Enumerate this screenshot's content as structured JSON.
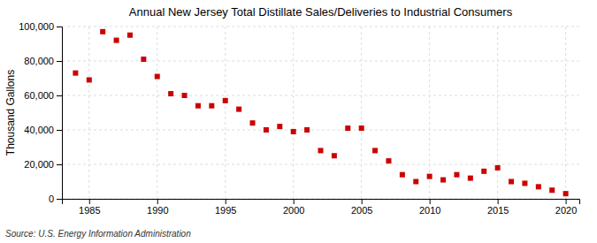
{
  "chart_data": {
    "type": "scatter",
    "title": "Annual New Jersey Total Distillate Sales/Deliveries to Industrial Consumers",
    "ylabel": "Thousand Gallons",
    "source": "Source: U.S. Energy Information Administration",
    "x": [
      1984,
      1985,
      1986,
      1987,
      1988,
      1989,
      1990,
      1991,
      1992,
      1993,
      1994,
      1995,
      1996,
      1997,
      1998,
      1999,
      2000,
      2001,
      2002,
      2003,
      2004,
      2005,
      2006,
      2007,
      2008,
      2009,
      2010,
      2011,
      2012,
      2013,
      2014,
      2015,
      2016,
      2017,
      2018,
      2019,
      2020
    ],
    "values": [
      73000,
      69000,
      97000,
      92000,
      95000,
      81000,
      71000,
      61000,
      60000,
      54000,
      54000,
      57000,
      52000,
      44000,
      40000,
      42000,
      39000,
      40000,
      28000,
      25000,
      41000,
      41000,
      28000,
      22000,
      14000,
      10000,
      13000,
      11000,
      14000,
      12000,
      16000,
      18000,
      10000,
      9000,
      7000,
      5000,
      3000
    ],
    "color": "#cc0000",
    "marker": "square",
    "xlim": [
      1983,
      2021
    ],
    "ylim": [
      0,
      100000
    ],
    "xticks": [
      1985,
      1990,
      1995,
      2000,
      2005,
      2010,
      2015,
      2020
    ],
    "yticks": [
      0,
      {
        "value": 20000,
        "label": "20,000"
      },
      {
        "value": 40000,
        "label": "40,000"
      },
      {
        "value": 60000,
        "label": "60,000"
      },
      {
        "value": 80000,
        "label": "80,000"
      },
      {
        "value": 100000,
        "label": "100,000"
      }
    ],
    "grid": true
  }
}
